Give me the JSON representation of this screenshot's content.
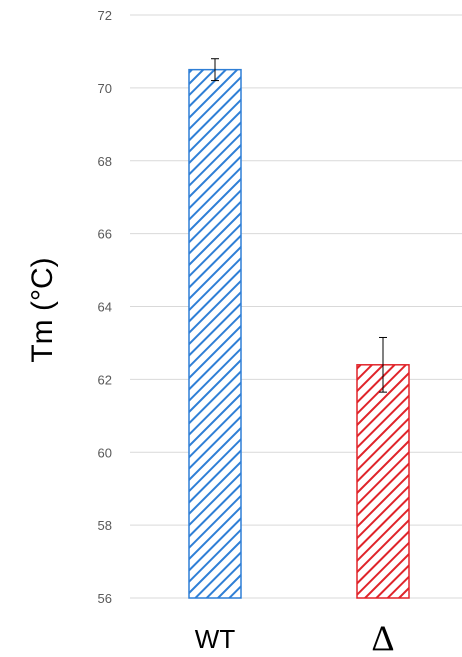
{
  "chart_data": {
    "type": "bar",
    "title": "",
    "xlabel": "",
    "ylabel": "Tm (°C)",
    "ylim": [
      56,
      72
    ],
    "yticks": [
      56,
      58,
      60,
      62,
      64,
      66,
      68,
      70,
      72
    ],
    "grid": true,
    "legend": "none",
    "categories": [
      "WT",
      "Δ"
    ],
    "values": [
      70.5,
      62.4
    ],
    "errors": [
      0.3,
      0.75
    ],
    "colors": [
      "#2f7fd6",
      "#e0242a"
    ],
    "fill_pattern": "diagonal-hatch"
  }
}
